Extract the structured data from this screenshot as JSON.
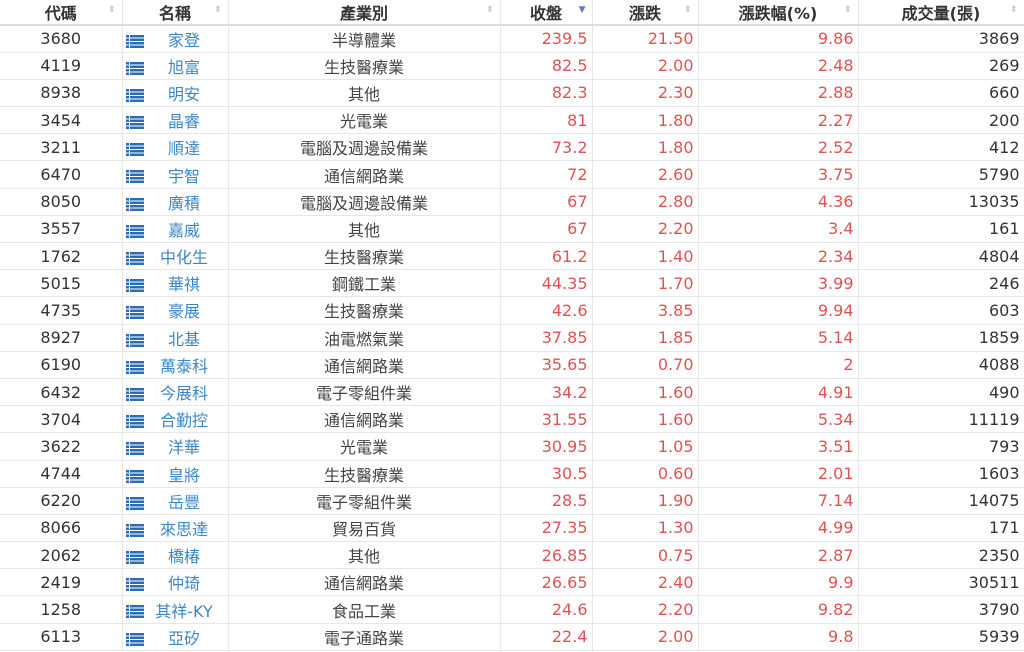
{
  "colors": {
    "up": "#e05252",
    "link": "#3d86c6",
    "icon": "#2b6db3"
  },
  "columns": [
    {
      "label": "代碼",
      "sort": "none"
    },
    {
      "label": "名稱",
      "sort": "none"
    },
    {
      "label": "產業別",
      "sort": "none"
    },
    {
      "label": "收盤",
      "sort": "desc"
    },
    {
      "label": "漲跌",
      "sort": "none"
    },
    {
      "label": "漲跌幅(%)",
      "sort": "none"
    },
    {
      "label": "成交量(張)",
      "sort": "none"
    }
  ],
  "rows": [
    [
      "3680",
      "家登",
      "半導體業",
      "239.5",
      "21.50",
      "9.86",
      "3869"
    ],
    [
      "4119",
      "旭富",
      "生技醫療業",
      "82.5",
      "2.00",
      "2.48",
      "269"
    ],
    [
      "8938",
      "明安",
      "其他",
      "82.3",
      "2.30",
      "2.88",
      "660"
    ],
    [
      "3454",
      "晶睿",
      "光電業",
      "81",
      "1.80",
      "2.27",
      "200"
    ],
    [
      "3211",
      "順達",
      "電腦及週邊設備業",
      "73.2",
      "1.80",
      "2.52",
      "412"
    ],
    [
      "6470",
      "宇智",
      "通信網路業",
      "72",
      "2.60",
      "3.75",
      "5790"
    ],
    [
      "8050",
      "廣積",
      "電腦及週邊設備業",
      "67",
      "2.80",
      "4.36",
      "13035"
    ],
    [
      "3557",
      "嘉威",
      "其他",
      "67",
      "2.20",
      "3.4",
      "161"
    ],
    [
      "1762",
      "中化生",
      "生技醫療業",
      "61.2",
      "1.40",
      "2.34",
      "4804"
    ],
    [
      "5015",
      "華祺",
      "鋼鐵工業",
      "44.35",
      "1.70",
      "3.99",
      "246"
    ],
    [
      "4735",
      "豪展",
      "生技醫療業",
      "42.6",
      "3.85",
      "9.94",
      "603"
    ],
    [
      "8927",
      "北基",
      "油電燃氣業",
      "37.85",
      "1.85",
      "5.14",
      "1859"
    ],
    [
      "6190",
      "萬泰科",
      "通信網路業",
      "35.65",
      "0.70",
      "2",
      "4088"
    ],
    [
      "6432",
      "今展科",
      "電子零組件業",
      "34.2",
      "1.60",
      "4.91",
      "490"
    ],
    [
      "3704",
      "合勤控",
      "通信網路業",
      "31.55",
      "1.60",
      "5.34",
      "11119"
    ],
    [
      "3622",
      "洋華",
      "光電業",
      "30.95",
      "1.05",
      "3.51",
      "793"
    ],
    [
      "4744",
      "皇將",
      "生技醫療業",
      "30.5",
      "0.60",
      "2.01",
      "1603"
    ],
    [
      "6220",
      "岳豐",
      "電子零組件業",
      "28.5",
      "1.90",
      "7.14",
      "14075"
    ],
    [
      "8066",
      "來思達",
      "貿易百貨",
      "27.35",
      "1.30",
      "4.99",
      "171"
    ],
    [
      "2062",
      "橋椿",
      "其他",
      "26.85",
      "0.75",
      "2.87",
      "2350"
    ],
    [
      "2419",
      "仲琦",
      "通信網路業",
      "26.65",
      "2.40",
      "9.9",
      "30511"
    ],
    [
      "1258",
      "其祥-KY",
      "食品工業",
      "24.6",
      "2.20",
      "9.82",
      "3790"
    ],
    [
      "6113",
      "亞矽",
      "電子通路業",
      "22.4",
      "2.00",
      "9.8",
      "5939"
    ]
  ]
}
